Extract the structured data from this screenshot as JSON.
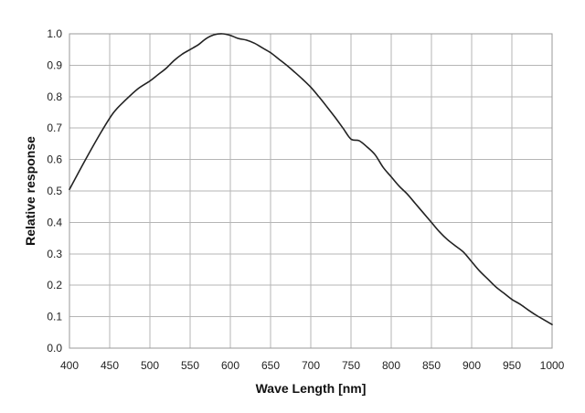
{
  "chart_data": {
    "type": "line",
    "title": "",
    "xlabel": "Wave Length [nm]",
    "ylabel": "Relative response",
    "xlim": [
      400,
      1000
    ],
    "ylim": [
      0.0,
      1.0
    ],
    "x_ticks": [
      "400",
      "450",
      "500",
      "550",
      "600",
      "650",
      "700",
      "750",
      "800",
      "850",
      "900",
      "950",
      "1000"
    ],
    "y_ticks": [
      "0.0",
      "0.1",
      "0.2",
      "0.3",
      "0.4",
      "0.5",
      "0.6",
      "0.7",
      "0.8",
      "0.9",
      "1.0"
    ],
    "grid": true,
    "legend": "none",
    "series": [
      {
        "x": [
          400,
          420,
          440,
          455,
          470,
          485,
          500,
          510,
          520,
          530,
          540,
          550,
          560,
          570,
          580,
          590,
          600,
          610,
          620,
          630,
          640,
          650,
          660,
          670,
          680,
          690,
          700,
          710,
          720,
          730,
          740,
          750,
          760,
          770,
          780,
          790,
          800,
          810,
          820,
          830,
          840,
          850,
          860,
          870,
          880,
          890,
          900,
          910,
          920,
          930,
          940,
          950,
          960,
          970,
          980,
          990,
          1000
        ],
        "y": [
          0.505,
          0.6,
          0.69,
          0.75,
          0.79,
          0.825,
          0.85,
          0.87,
          0.89,
          0.915,
          0.935,
          0.95,
          0.965,
          0.985,
          0.997,
          1.0,
          0.995,
          0.985,
          0.98,
          0.97,
          0.955,
          0.94,
          0.92,
          0.9,
          0.878,
          0.855,
          0.83,
          0.8,
          0.768,
          0.735,
          0.7,
          0.665,
          0.66,
          0.64,
          0.615,
          0.575,
          0.545,
          0.515,
          0.49,
          0.46,
          0.43,
          0.4,
          0.37,
          0.345,
          0.325,
          0.305,
          0.275,
          0.245,
          0.22,
          0.195,
          0.175,
          0.155,
          0.14,
          0.122,
          0.105,
          0.09,
          0.075
        ],
        "color": "#222222"
      }
    ]
  }
}
